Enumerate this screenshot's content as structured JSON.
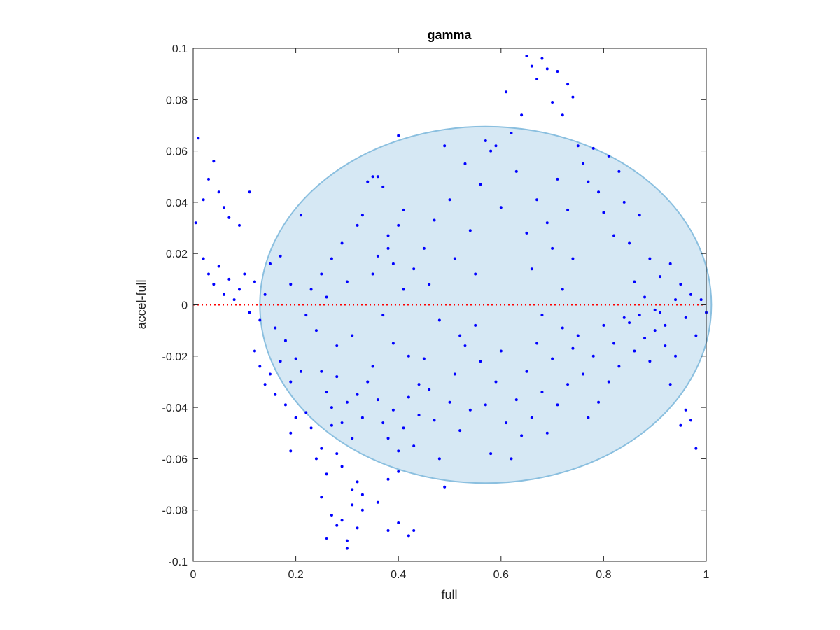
{
  "chart_data": {
    "type": "scatter",
    "title": "gamma",
    "xlabel": "full",
    "ylabel": "accel-full",
    "xlim": [
      0,
      1
    ],
    "ylim": [
      -0.1,
      0.1
    ],
    "x_ticks": [
      0,
      0.2,
      0.4,
      0.6,
      0.8,
      1
    ],
    "x_tick_labels": [
      "0",
      "0.2",
      "0.4",
      "0.6",
      "0.8",
      "1"
    ],
    "y_ticks": [
      -0.1,
      -0.08,
      -0.06,
      -0.04,
      -0.02,
      0,
      0.02,
      0.04,
      0.06,
      0.08,
      0.1
    ],
    "y_tick_labels": [
      "-0.1",
      "-0.08",
      "-0.06",
      "-0.04",
      "-0.02",
      "0",
      "0.02",
      "0.04",
      "0.06",
      "0.08",
      "0.1"
    ],
    "grid": false,
    "legend": "none",
    "reference_line": {
      "y": 0,
      "style": "dotted",
      "color": "#ff0000"
    },
    "ellipse": {
      "cx": 0.57,
      "cy": 0.0,
      "rx": 0.44,
      "ry": 0.0695,
      "fill": "#d6e8f4",
      "stroke": "#8abfdf"
    },
    "series": [
      {
        "color": "#0000ff",
        "points": [
          [
            0.01,
            0.065
          ],
          [
            0.02,
            0.041
          ],
          [
            0.03,
            0.049
          ],
          [
            0.04,
            0.056
          ],
          [
            0.05,
            0.044
          ],
          [
            0.06,
            0.038
          ],
          [
            0.07,
            0.034
          ],
          [
            0.09,
            0.031
          ],
          [
            0.11,
            0.044
          ],
          [
            0.005,
            0.032
          ],
          [
            0.02,
            0.018
          ],
          [
            0.03,
            0.012
          ],
          [
            0.04,
            0.008
          ],
          [
            0.05,
            0.015
          ],
          [
            0.06,
            0.004
          ],
          [
            0.07,
            0.01
          ],
          [
            0.08,
            0.002
          ],
          [
            0.09,
            0.006
          ],
          [
            0.1,
            0.012
          ],
          [
            0.11,
            -0.003
          ],
          [
            0.12,
            0.009
          ],
          [
            0.13,
            -0.006
          ],
          [
            0.14,
            0.004
          ],
          [
            0.15,
            0.016
          ],
          [
            0.16,
            -0.009
          ],
          [
            0.17,
            0.019
          ],
          [
            0.18,
            -0.014
          ],
          [
            0.19,
            0.008
          ],
          [
            0.2,
            -0.021
          ],
          [
            0.21,
            0.035
          ],
          [
            0.12,
            -0.018
          ],
          [
            0.13,
            -0.024
          ],
          [
            0.14,
            -0.031
          ],
          [
            0.15,
            -0.027
          ],
          [
            0.16,
            -0.035
          ],
          [
            0.17,
            -0.022
          ],
          [
            0.18,
            -0.039
          ],
          [
            0.19,
            -0.03
          ],
          [
            0.2,
            -0.044
          ],
          [
            0.21,
            -0.026
          ],
          [
            0.19,
            -0.057
          ],
          [
            0.19,
            -0.05
          ],
          [
            0.22,
            -0.042
          ],
          [
            0.23,
            -0.048
          ],
          [
            0.24,
            -0.06
          ],
          [
            0.25,
            -0.056
          ],
          [
            0.26,
            -0.066
          ],
          [
            0.27,
            -0.047
          ],
          [
            0.28,
            -0.058
          ],
          [
            0.29,
            -0.063
          ],
          [
            0.25,
            -0.075
          ],
          [
            0.26,
            -0.091
          ],
          [
            0.27,
            -0.082
          ],
          [
            0.28,
            -0.086
          ],
          [
            0.29,
            -0.084
          ],
          [
            0.3,
            -0.092
          ],
          [
            0.31,
            -0.078
          ],
          [
            0.32,
            -0.087
          ],
          [
            0.3,
            -0.095
          ],
          [
            0.33,
            -0.08
          ],
          [
            0.31,
            -0.072
          ],
          [
            0.32,
            -0.069
          ],
          [
            0.33,
            -0.074
          ],
          [
            0.36,
            -0.077
          ],
          [
            0.38,
            -0.088
          ],
          [
            0.4,
            -0.085
          ],
          [
            0.42,
            -0.09
          ],
          [
            0.43,
            -0.088
          ],
          [
            0.4,
            -0.065
          ],
          [
            0.38,
            -0.068
          ],
          [
            0.22,
            -0.004
          ],
          [
            0.23,
            0.006
          ],
          [
            0.24,
            -0.01
          ],
          [
            0.25,
            0.012
          ],
          [
            0.26,
            0.003
          ],
          [
            0.27,
            0.018
          ],
          [
            0.28,
            -0.016
          ],
          [
            0.29,
            0.024
          ],
          [
            0.3,
            0.009
          ],
          [
            0.31,
            -0.012
          ],
          [
            0.25,
            -0.026
          ],
          [
            0.26,
            -0.034
          ],
          [
            0.27,
            -0.04
          ],
          [
            0.28,
            -0.028
          ],
          [
            0.29,
            -0.046
          ],
          [
            0.3,
            -0.038
          ],
          [
            0.31,
            -0.052
          ],
          [
            0.32,
            -0.035
          ],
          [
            0.33,
            -0.044
          ],
          [
            0.34,
            -0.03
          ],
          [
            0.32,
            0.031
          ],
          [
            0.33,
            0.035
          ],
          [
            0.34,
            0.048
          ],
          [
            0.35,
            0.05
          ],
          [
            0.36,
            0.05
          ],
          [
            0.37,
            0.046
          ],
          [
            0.38,
            0.027
          ],
          [
            0.39,
            0.016
          ],
          [
            0.4,
            0.066
          ],
          [
            0.41,
            0.037
          ],
          [
            0.35,
            0.012
          ],
          [
            0.36,
            0.019
          ],
          [
            0.37,
            -0.004
          ],
          [
            0.38,
            0.022
          ],
          [
            0.39,
            -0.015
          ],
          [
            0.4,
            0.031
          ],
          [
            0.41,
            0.006
          ],
          [
            0.42,
            -0.02
          ],
          [
            0.43,
            0.014
          ],
          [
            0.44,
            -0.031
          ],
          [
            0.35,
            -0.024
          ],
          [
            0.36,
            -0.037
          ],
          [
            0.37,
            -0.046
          ],
          [
            0.38,
            -0.052
          ],
          [
            0.39,
            -0.041
          ],
          [
            0.4,
            -0.057
          ],
          [
            0.41,
            -0.048
          ],
          [
            0.42,
            -0.036
          ],
          [
            0.43,
            -0.055
          ],
          [
            0.44,
            -0.043
          ],
          [
            0.45,
            0.022
          ],
          [
            0.46,
            0.008
          ],
          [
            0.47,
            0.033
          ],
          [
            0.48,
            -0.006
          ],
          [
            0.49,
            0.062
          ],
          [
            0.5,
            0.041
          ],
          [
            0.51,
            0.018
          ],
          [
            0.52,
            -0.012
          ],
          [
            0.53,
            0.055
          ],
          [
            0.54,
            0.029
          ],
          [
            0.45,
            -0.021
          ],
          [
            0.46,
            -0.033
          ],
          [
            0.47,
            -0.045
          ],
          [
            0.48,
            -0.06
          ],
          [
            0.49,
            -0.071
          ],
          [
            0.5,
            -0.038
          ],
          [
            0.51,
            -0.027
          ],
          [
            0.52,
            -0.049
          ],
          [
            0.53,
            -0.016
          ],
          [
            0.54,
            -0.041
          ],
          [
            0.55,
            0.012
          ],
          [
            0.56,
            0.047
          ],
          [
            0.57,
            0.064
          ],
          [
            0.58,
            0.06
          ],
          [
            0.59,
            0.062
          ],
          [
            0.6,
            0.038
          ],
          [
            0.61,
            0.083
          ],
          [
            0.62,
            0.067
          ],
          [
            0.63,
            0.052
          ],
          [
            0.64,
            0.074
          ],
          [
            0.55,
            -0.008
          ],
          [
            0.56,
            -0.022
          ],
          [
            0.57,
            -0.039
          ],
          [
            0.58,
            -0.058
          ],
          [
            0.59,
            -0.03
          ],
          [
            0.6,
            -0.018
          ],
          [
            0.61,
            -0.046
          ],
          [
            0.62,
            -0.06
          ],
          [
            0.63,
            -0.037
          ],
          [
            0.64,
            -0.051
          ],
          [
            0.65,
            0.097
          ],
          [
            0.66,
            0.093
          ],
          [
            0.67,
            0.088
          ],
          [
            0.68,
            0.096
          ],
          [
            0.69,
            0.092
          ],
          [
            0.7,
            0.079
          ],
          [
            0.71,
            0.091
          ],
          [
            0.72,
            0.074
          ],
          [
            0.73,
            0.086
          ],
          [
            0.74,
            0.081
          ],
          [
            0.65,
            0.028
          ],
          [
            0.66,
            0.014
          ],
          [
            0.67,
            0.041
          ],
          [
            0.68,
            -0.004
          ],
          [
            0.69,
            0.032
          ],
          [
            0.7,
            0.022
          ],
          [
            0.71,
            0.049
          ],
          [
            0.72,
            0.006
          ],
          [
            0.73,
            0.037
          ],
          [
            0.74,
            0.018
          ],
          [
            0.65,
            -0.026
          ],
          [
            0.66,
            -0.044
          ],
          [
            0.67,
            -0.015
          ],
          [
            0.68,
            -0.034
          ],
          [
            0.69,
            -0.05
          ],
          [
            0.7,
            -0.021
          ],
          [
            0.71,
            -0.039
          ],
          [
            0.72,
            -0.009
          ],
          [
            0.73,
            -0.031
          ],
          [
            0.74,
            -0.017
          ],
          [
            0.75,
            0.062
          ],
          [
            0.76,
            0.055
          ],
          [
            0.77,
            0.048
          ],
          [
            0.78,
            0.061
          ],
          [
            0.79,
            0.044
          ],
          [
            0.8,
            0.036
          ],
          [
            0.81,
            0.058
          ],
          [
            0.82,
            0.027
          ],
          [
            0.83,
            0.052
          ],
          [
            0.84,
            0.04
          ],
          [
            0.75,
            -0.012
          ],
          [
            0.76,
            -0.027
          ],
          [
            0.77,
            -0.044
          ],
          [
            0.78,
            -0.02
          ],
          [
            0.79,
            -0.038
          ],
          [
            0.8,
            -0.008
          ],
          [
            0.81,
            -0.03
          ],
          [
            0.82,
            -0.015
          ],
          [
            0.83,
            -0.024
          ],
          [
            0.84,
            -0.005
          ],
          [
            0.85,
            0.024
          ],
          [
            0.86,
            0.009
          ],
          [
            0.87,
            0.035
          ],
          [
            0.88,
            0.003
          ],
          [
            0.89,
            0.018
          ],
          [
            0.9,
            -0.002
          ],
          [
            0.91,
            0.011
          ],
          [
            0.92,
            -0.008
          ],
          [
            0.93,
            0.016
          ],
          [
            0.94,
            0.002
          ],
          [
            0.85,
            -0.007
          ],
          [
            0.86,
            -0.018
          ],
          [
            0.87,
            -0.004
          ],
          [
            0.88,
            -0.013
          ],
          [
            0.89,
            -0.022
          ],
          [
            0.9,
            -0.01
          ],
          [
            0.91,
            -0.003
          ],
          [
            0.92,
            -0.016
          ],
          [
            0.93,
            -0.031
          ],
          [
            0.94,
            -0.02
          ],
          [
            0.95,
            0.008
          ],
          [
            0.96,
            -0.005
          ],
          [
            0.97,
            0.004
          ],
          [
            0.98,
            -0.012
          ],
          [
            0.99,
            0.002
          ],
          [
            1.0,
            -0.003
          ],
          [
            0.96,
            -0.041
          ],
          [
            0.97,
            -0.045
          ],
          [
            0.98,
            -0.056
          ],
          [
            0.95,
            -0.047
          ]
        ]
      }
    ]
  }
}
